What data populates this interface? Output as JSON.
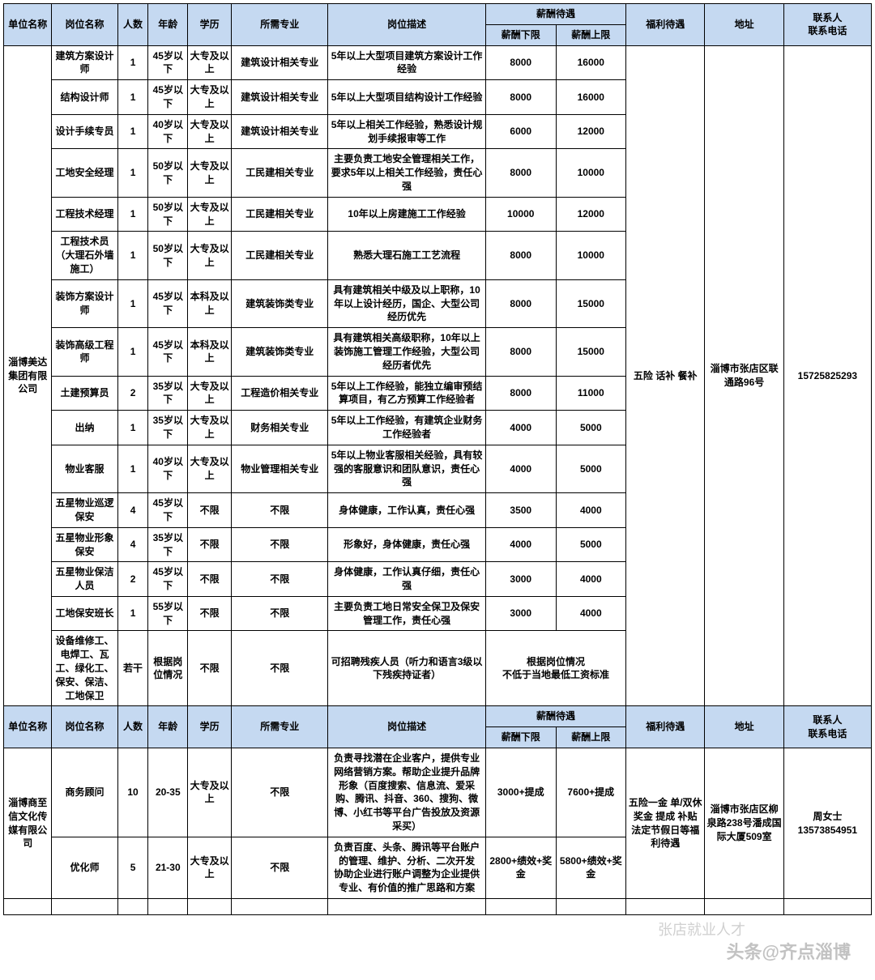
{
  "headers": {
    "company": "单位名称",
    "job": "岗位名称",
    "num": "人数",
    "age": "年龄",
    "edu": "学历",
    "major": "所需专业",
    "desc": "岗位描述",
    "salary": "薪酬待遇",
    "salmin": "薪酬下限",
    "salmax": "薪酬上限",
    "welfare": "福利待遇",
    "addr": "地址",
    "contact": "联系人\n联系电话"
  },
  "company1": {
    "name": "淄博美达集团有限公司",
    "welfare": "五险 话补 餐补",
    "addr": "淄博市张店区联通路96号",
    "contact": "15725825293",
    "rows": [
      {
        "job": "建筑方案设计师",
        "num": "1",
        "age": "45岁以下",
        "edu": "大专及以上",
        "major": "建筑设计相关专业",
        "desc": "5年以上大型项目建筑方案设计工作经验",
        "salmin": "8000",
        "salmax": "16000"
      },
      {
        "job": "结构设计师",
        "num": "1",
        "age": "45岁以下",
        "edu": "大专及以上",
        "major": "建筑设计相关专业",
        "desc": "5年以上大型项目结构设计工作经验",
        "salmin": "8000",
        "salmax": "16000"
      },
      {
        "job": "设计手续专员",
        "num": "1",
        "age": "40岁以下",
        "edu": "大专及以上",
        "major": "建筑设计相关专业",
        "desc": "5年以上相关工作经验，熟悉设计规划手续报审等工作",
        "salmin": "6000",
        "salmax": "12000"
      },
      {
        "job": "工地安全经理",
        "num": "1",
        "age": "50岁以下",
        "edu": "大专及以上",
        "major": "工民建相关专业",
        "desc": "主要负责工地安全管理相关工作，要求5年以上相关工作经验，责任心强",
        "salmin": "8000",
        "salmax": "10000"
      },
      {
        "job": "工程技术经理",
        "num": "1",
        "age": "50岁以下",
        "edu": "大专及以上",
        "major": "工民建相关专业",
        "desc": "10年以上房建施工工作经验",
        "salmin": "10000",
        "salmax": "12000"
      },
      {
        "job": "工程技术员（大理石外墙施工）",
        "num": "1",
        "age": "50岁以下",
        "edu": "大专及以上",
        "major": "工民建相关专业",
        "desc": "熟悉大理石施工工艺流程",
        "salmin": "8000",
        "salmax": "10000"
      },
      {
        "job": "装饰方案设计师",
        "num": "1",
        "age": "45岁以下",
        "edu": "本科及以上",
        "major": "建筑装饰类专业",
        "desc": "具有建筑相关中级及以上职称，10年以上设计经历，国企、大型公司经历优先",
        "salmin": "8000",
        "salmax": "15000"
      },
      {
        "job": "装饰高级工程师",
        "num": "1",
        "age": "45岁以下",
        "edu": "本科及以上",
        "major": "建筑装饰类专业",
        "desc": "具有建筑相关高级职称，10年以上装饰施工管理工作经验，大型公司经历者优先",
        "salmin": "8000",
        "salmax": "15000"
      },
      {
        "job": "土建预算员",
        "num": "2",
        "age": "35岁以下",
        "edu": "大专及以上",
        "major": "工程造价相关专业",
        "desc": "5年以上工作经验，能独立编审预结算项目，有乙方预算工作经验者",
        "salmin": "8000",
        "salmax": "11000"
      },
      {
        "job": "出纳",
        "num": "1",
        "age": "35岁以下",
        "edu": "大专及以上",
        "major": "财务相关专业",
        "desc": "5年以上工作经验，有建筑企业财务工作经验者",
        "salmin": "4000",
        "salmax": "5000"
      },
      {
        "job": "物业客服",
        "num": "1",
        "age": "40岁以下",
        "edu": "大专及以上",
        "major": "物业管理相关专业",
        "desc": "5年以上物业客服相关经验，具有较强的客服意识和团队意识，责任心强",
        "salmin": "4000",
        "salmax": "5000"
      },
      {
        "job": "五星物业巡逻保安",
        "num": "4",
        "age": "45岁以下",
        "edu": "不限",
        "major": "不限",
        "desc": "身体健康，工作认真，责任心强",
        "salmin": "3500",
        "salmax": "4000"
      },
      {
        "job": "五星物业形象保安",
        "num": "4",
        "age": "35岁以下",
        "edu": "不限",
        "major": "不限",
        "desc": "形象好，身体健康，责任心强",
        "salmin": "4000",
        "salmax": "5000"
      },
      {
        "job": "五星物业保洁人员",
        "num": "2",
        "age": "45岁以下",
        "edu": "不限",
        "major": "不限",
        "desc": "身体健康，工作认真仔细，责任心强",
        "salmin": "3000",
        "salmax": "4000"
      },
      {
        "job": "工地保安班长",
        "num": "1",
        "age": "55岁以下",
        "edu": "不限",
        "major": "不限",
        "desc": "主要负责工地日常安全保卫及保安管理工作，责任心强",
        "salmin": "3000",
        "salmax": "4000"
      },
      {
        "job": "设备维修工、电焊工、瓦工、绿化工、保安、保洁、工地保卫",
        "num": "若干",
        "age": "根据岗位情况",
        "edu": "不限",
        "major": "不限",
        "desc": "可招聘残疾人员（听力和语言3级以下残疾持证者）",
        "salspan": "根据岗位情况\n不低于当地最低工资标准"
      }
    ]
  },
  "company2": {
    "name": "淄博商至信文化传媒有限公司",
    "welfare": "五险一金 单/双休 奖金 提成 补贴 法定节假日等福利待遇",
    "addr": "淄博市张店区柳泉路238号潘成国际大厦509室",
    "contact": "周女士\n13573854951",
    "rows": [
      {
        "job": "商务顾问",
        "num": "10",
        "age": "20-35",
        "edu": "大专及以上",
        "major": "不限",
        "desc": "负责寻找潜在企业客户，提供专业网络营销方案。帮助企业提升品牌形象（百度搜索、信息流、爱采购、腾讯、抖音、360、搜狗、微博、小红书等平台广告投放及资源采买）",
        "salmin": "3000+提成",
        "salmax": "7600+提成"
      },
      {
        "job": "优化师",
        "num": "5",
        "age": "21-30",
        "edu": "大专及以上",
        "major": "不限",
        "desc": "负责百度、头条、腾讯等平台账户的管理、维护、分析、二次开发\n协助企业进行账户调整为企业提供专业、有价值的推广思路和方案",
        "salmin": "2800+绩效+奖金",
        "salmax": "5800+绩效+奖金"
      }
    ]
  },
  "watermarks": {
    "w1": "头条@齐点淄博",
    "w2": "张店就业人才"
  }
}
